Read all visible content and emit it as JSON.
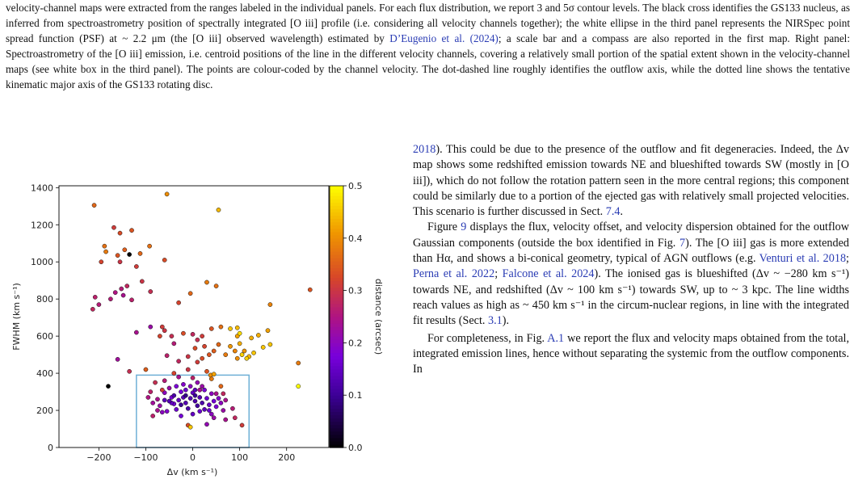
{
  "caption": {
    "segments": [
      {
        "text": "velocity-channel maps were extracted from the ranges labeled in the individual panels. For each flux distribution, we report 3 and 5σ contour levels. The black cross identifies the GS133 nucleus, as inferred from spectroastrometry position of spectrally integrated [O iii] profile (i.e. considering all velocity channels together); the white ellipse in the third panel represents the NIRSpec point spread function (PSF) at ~ 2.2 μm (the [O iii] observed wavelength) estimated by ",
        "cite": false
      },
      {
        "text": "D’Eugenio et al. (2024)",
        "cite": true
      },
      {
        "text": "; a scale bar and a compass are also reported in the first map. Right panel: Spectroastrometry of the [O iii] emission, i.e. centroid positions of the line in the different velocity channels, covering a relatively small portion of the spatial extent shown in the velocity-channel maps (see white box in the third panel). The points are colour-coded by the channel velocity. The dot-dashed line roughly identifies the outflow axis, while the dotted line shows the tentative kinematic major axis of the GS133 rotating disc.",
        "cite": false
      }
    ]
  },
  "body_text": {
    "para1": [
      {
        "text": "2018",
        "cite": true
      },
      {
        "text": "). This could be due to the presence of the outflow and fit degeneracies. Indeed, the Δv map shows some redshifted emission towards NE and blueshifted towards SW (mostly in [O iii]), which do not follow the rotation pattern seen in the more central regions; this component could be similarly due to a portion of the ejected gas with relatively small projected velocities. This scenario is further discussed in Sect. ",
        "cite": false
      },
      {
        "text": "7.4",
        "cite": true
      },
      {
        "text": ".",
        "cite": false
      }
    ],
    "para2": [
      {
        "text": "Figure ",
        "cite": false
      },
      {
        "text": "9",
        "cite": true
      },
      {
        "text": " displays the flux, velocity offset, and velocity dispersion obtained for the outflow Gaussian components (outside the box identified in Fig. ",
        "cite": false
      },
      {
        "text": "7",
        "cite": true
      },
      {
        "text": "). The [O iii] gas is more extended than Hα, and shows a bi-conical geometry, typical of AGN outflows (e.g. ",
        "cite": false
      },
      {
        "text": "Venturi et al. 2018",
        "cite": true
      },
      {
        "text": "; ",
        "cite": false
      },
      {
        "text": "Perna et al. 2022",
        "cite": true
      },
      {
        "text": "; ",
        "cite": false
      },
      {
        "text": "Falcone et al. 2024",
        "cite": true
      },
      {
        "text": "). The ionised gas is blueshifted (Δv ~ −280 km s⁻¹) towards NE, and redshifted (Δv ~ 100 km s⁻¹) towards SW, up to ~ 3 kpc. The line widths reach values as high as ~ 450 km s⁻¹ in the circum-nuclear regions, in line with the integrated fit results (Sect. ",
        "cite": false
      },
      {
        "text": "3.1",
        "cite": true
      },
      {
        "text": ").",
        "cite": false
      }
    ],
    "para3": [
      {
        "text": "For completeness, in Fig. ",
        "cite": false
      },
      {
        "text": "A.1",
        "cite": true
      },
      {
        "text": " we report the flux and velocity maps obtained from the total, integrated emission lines, hence without separating the systemic from the outflow components. In",
        "cite": false
      }
    ]
  },
  "chart_data": {
    "type": "scatter",
    "xlabel": "Δv (km s⁻¹)",
    "ylabel": "FWHM (km s⁻¹)",
    "colorbar_label": "distance (arcsec)",
    "xlim": [
      -285,
      290
    ],
    "ylim": [
      0,
      1410
    ],
    "xticks": [
      -200,
      -100,
      0,
      100,
      200
    ],
    "yticks": [
      0,
      200,
      400,
      600,
      800,
      1000,
      1200,
      1400
    ],
    "cticks": [
      0.0,
      0.1,
      0.2,
      0.3,
      0.4,
      0.5
    ],
    "clim": [
      0.0,
      0.5
    ],
    "box": {
      "x0": -120,
      "x1": 120,
      "y0": 0,
      "y1": 390,
      "color": "#6fb0d6"
    },
    "points": [
      [
        -210,
        1305,
        0.36
      ],
      [
        -168,
        1185,
        0.31
      ],
      [
        -155,
        1155,
        0.33
      ],
      [
        -130,
        1170,
        0.34
      ],
      [
        -188,
        1085,
        0.37
      ],
      [
        -185,
        1055,
        0.38
      ],
      [
        -145,
        1065,
        0.35
      ],
      [
        -92,
        1085,
        0.37
      ],
      [
        -112,
        1045,
        0.36
      ],
      [
        -55,
        1365,
        0.4
      ],
      [
        55,
        1280,
        0.44
      ],
      [
        -160,
        1035,
        0.34
      ],
      [
        -135,
        1040,
        0.0
      ],
      [
        -155,
        1000,
        0.3
      ],
      [
        -195,
        1000,
        0.32
      ],
      [
        -60,
        1010,
        0.33
      ],
      [
        -120,
        975,
        0.31
      ],
      [
        -108,
        895,
        0.3
      ],
      [
        -90,
        840,
        0.29
      ],
      [
        -208,
        810,
        0.27
      ],
      [
        -175,
        800,
        0.26
      ],
      [
        -165,
        835,
        0.25
      ],
      [
        -152,
        855,
        0.26
      ],
      [
        -148,
        820,
        0.24
      ],
      [
        -140,
        870,
        0.28
      ],
      [
        -130,
        795,
        0.27
      ],
      [
        -200,
        770,
        0.26
      ],
      [
        -213,
        745,
        0.28
      ],
      [
        -30,
        780,
        0.32
      ],
      [
        -5,
        830,
        0.36
      ],
      [
        30,
        890,
        0.38
      ],
      [
        50,
        870,
        0.37
      ],
      [
        250,
        850,
        0.34
      ],
      [
        165,
        770,
        0.39
      ],
      [
        -65,
        650,
        0.31
      ],
      [
        -60,
        630,
        0.3
      ],
      [
        -70,
        600,
        0.32
      ],
      [
        -45,
        600,
        0.29
      ],
      [
        -20,
        615,
        0.33
      ],
      [
        -40,
        560,
        0.26
      ],
      [
        0,
        610,
        0.28
      ],
      [
        10,
        580,
        0.29
      ],
      [
        20,
        600,
        0.31
      ],
      [
        40,
        640,
        0.34
      ],
      [
        60,
        650,
        0.37
      ],
      [
        5,
        535,
        0.33
      ],
      [
        25,
        545,
        0.32
      ],
      [
        45,
        520,
        0.35
      ],
      [
        55,
        555,
        0.36
      ],
      [
        35,
        500,
        0.34
      ],
      [
        20,
        480,
        0.33
      ],
      [
        10,
        460,
        0.31
      ],
      [
        -10,
        490,
        0.3
      ],
      [
        -30,
        465,
        0.28
      ],
      [
        -55,
        495,
        0.27
      ],
      [
        -120,
        620,
        0.24
      ],
      [
        -90,
        650,
        0.22
      ],
      [
        -160,
        475,
        0.23
      ],
      [
        -180,
        330,
        0.0
      ],
      [
        -135,
        410,
        0.29
      ],
      [
        -100,
        420,
        0.35
      ],
      [
        70,
        500,
        0.38
      ],
      [
        90,
        520,
        0.39
      ],
      [
        80,
        545,
        0.41
      ],
      [
        95,
        600,
        0.42
      ],
      [
        100,
        560,
        0.43
      ],
      [
        110,
        520,
        0.41
      ],
      [
        120,
        490,
        0.44
      ],
      [
        130,
        510,
        0.45
      ],
      [
        115,
        480,
        0.46
      ],
      [
        95,
        480,
        0.4
      ],
      [
        80,
        640,
        0.45
      ],
      [
        95,
        645,
        0.44
      ],
      [
        100,
        615,
        0.47
      ],
      [
        140,
        605,
        0.43
      ],
      [
        160,
        630,
        0.42
      ],
      [
        165,
        555,
        0.45
      ],
      [
        125,
        590,
        0.43
      ],
      [
        150,
        540,
        0.45
      ],
      [
        105,
        500,
        0.46
      ],
      [
        225,
        455,
        0.38
      ],
      [
        225,
        330,
        0.5
      ],
      [
        30,
        410,
        0.34
      ],
      [
        -40,
        400,
        0.32
      ],
      [
        -10,
        420,
        0.3
      ],
      [
        40,
        370,
        0.38
      ],
      [
        0,
        375,
        0.27
      ],
      [
        -30,
        380,
        0.24
      ],
      [
        -60,
        360,
        0.26
      ],
      [
        -80,
        350,
        0.29
      ],
      [
        -90,
        300,
        0.27
      ],
      [
        -95,
        270,
        0.25
      ],
      [
        -85,
        240,
        0.23
      ],
      [
        -75,
        260,
        0.24
      ],
      [
        -70,
        225,
        0.22
      ],
      [
        -60,
        295,
        0.2
      ],
      [
        -50,
        320,
        0.22
      ],
      [
        -45,
        270,
        0.18
      ],
      [
        -40,
        235,
        0.17
      ],
      [
        -35,
        205,
        0.16
      ],
      [
        -30,
        255,
        0.15
      ],
      [
        -25,
        300,
        0.17
      ],
      [
        -20,
        270,
        0.14
      ],
      [
        -15,
        240,
        0.13
      ],
      [
        -10,
        210,
        0.12
      ],
      [
        -5,
        265,
        0.13
      ],
      [
        0,
        295,
        0.15
      ],
      [
        5,
        250,
        0.12
      ],
      [
        10,
        225,
        0.11
      ],
      [
        15,
        270,
        0.13
      ],
      [
        20,
        240,
        0.12
      ],
      [
        25,
        205,
        0.14
      ],
      [
        30,
        265,
        0.16
      ],
      [
        35,
        230,
        0.15
      ],
      [
        40,
        290,
        0.2
      ],
      [
        45,
        250,
        0.17
      ],
      [
        50,
        220,
        0.18
      ],
      [
        55,
        265,
        0.19
      ],
      [
        60,
        240,
        0.2
      ],
      [
        65,
        200,
        0.22
      ],
      [
        70,
        255,
        0.24
      ],
      [
        -55,
        195,
        0.19
      ],
      [
        -65,
        190,
        0.2
      ],
      [
        -40,
        280,
        0.12
      ],
      [
        -35,
        330,
        0.18
      ],
      [
        -20,
        340,
        0.19
      ],
      [
        10,
        350,
        0.21
      ],
      [
        20,
        330,
        0.22
      ],
      [
        -5,
        330,
        0.2
      ],
      [
        -15,
        310,
        0.16
      ],
      [
        5,
        310,
        0.14
      ],
      [
        25,
        310,
        0.18
      ],
      [
        35,
        200,
        0.16
      ],
      [
        -25,
        170,
        0.17
      ],
      [
        0,
        180,
        0.15
      ],
      [
        -85,
        170,
        0.27
      ],
      [
        -75,
        200,
        0.24
      ],
      [
        85,
        210,
        0.26
      ],
      [
        90,
        160,
        0.28
      ],
      [
        70,
        150,
        0.24
      ],
      [
        45,
        160,
        0.22
      ],
      [
        15,
        195,
        0.16
      ],
      [
        -10,
        120,
        0.33
      ],
      [
        -5,
        110,
        0.45
      ],
      [
        40,
        180,
        0.2
      ],
      [
        30,
        125,
        0.21
      ],
      [
        105,
        120,
        0.31
      ],
      [
        60,
        330,
        0.36
      ],
      [
        -45,
        240,
        0.15
      ],
      [
        -25,
        230,
        0.1
      ],
      [
        -15,
        280,
        0.09
      ],
      [
        5,
        280,
        0.1
      ],
      [
        15,
        310,
        0.24
      ],
      [
        -50,
        250,
        0.13
      ],
      [
        -60,
        255,
        0.14
      ],
      [
        50,
        290,
        0.24
      ],
      [
        65,
        290,
        0.28
      ],
      [
        -65,
        310,
        0.31
      ],
      [
        38,
        390,
        0.4
      ],
      [
        45,
        395,
        0.42
      ]
    ]
  }
}
